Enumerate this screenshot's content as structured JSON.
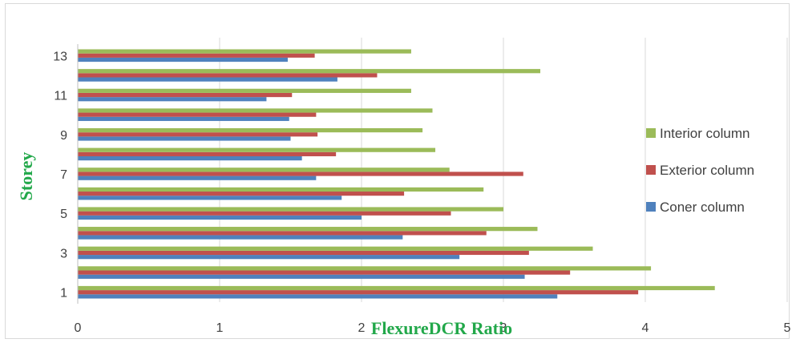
{
  "chart_data": {
    "type": "bar",
    "orientation": "horizontal",
    "xlabel": "FlexureDCR Ratio",
    "ylabel": "Storey",
    "xlim": [
      0,
      5
    ],
    "x_ticks": [
      "0",
      "1",
      "2",
      "3",
      "4",
      "5"
    ],
    "categories": [
      "1",
      "2",
      "3",
      "4",
      "5",
      "6",
      "7",
      "8",
      "9",
      "10",
      "11",
      "12",
      "13"
    ],
    "category_tick_labels": [
      "1",
      "",
      "3",
      "",
      "5",
      "",
      "7",
      "",
      "9",
      "",
      "11",
      "",
      "13"
    ],
    "grid": "vertical",
    "legend_position": "right",
    "series": [
      {
        "name": "Coner column",
        "color": "#4f81bd",
        "values": [
          3.38,
          3.15,
          2.69,
          2.29,
          2.0,
          1.86,
          1.68,
          1.58,
          1.5,
          1.49,
          1.33,
          1.83,
          1.48
        ]
      },
      {
        "name": "Exterior column",
        "color": "#c0504d",
        "values": [
          3.95,
          3.47,
          3.18,
          2.88,
          2.63,
          2.3,
          3.14,
          1.82,
          1.69,
          1.68,
          1.51,
          2.11,
          1.67
        ]
      },
      {
        "name": "Interior column",
        "color": "#9bbb59",
        "values": [
          4.49,
          4.04,
          3.63,
          3.24,
          3.0,
          2.86,
          2.62,
          2.52,
          2.43,
          2.5,
          2.35,
          3.26,
          2.35
        ]
      }
    ]
  }
}
